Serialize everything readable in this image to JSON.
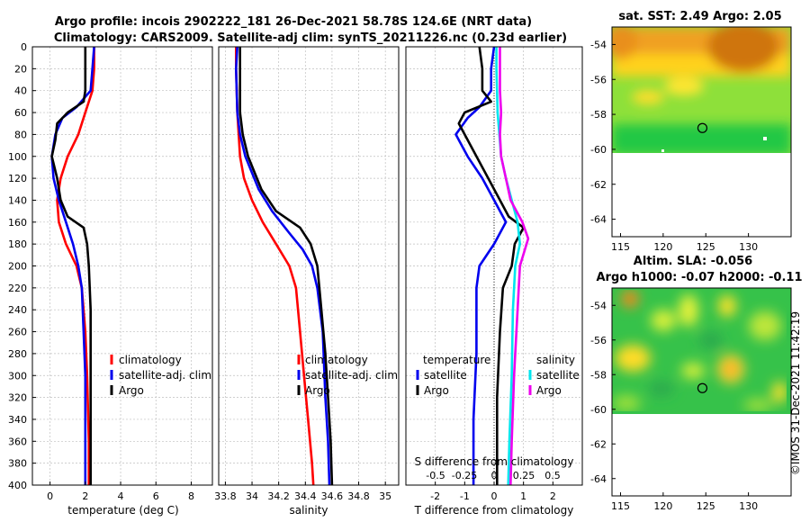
{
  "title_line1": "Argo profile: incois 2902222_181 26-Dec-2021 58.78S 124.6E (NRT data)",
  "title_line2": "Climatology: CARS2009. Satellite-adj clim: synTS_20211226.nc (0.23d earlier)",
  "copyright": "©IMOS 31-Dec-2021 11:42:19",
  "colors": {
    "climatology": "#ff0000",
    "satellite": "#0000ee",
    "argo": "#000000",
    "sat_salinity": "#00e5ee",
    "clim_salinity": "#ee00ee"
  },
  "depth_ticks": [
    "0",
    "20",
    "40",
    "60",
    "80",
    "100",
    "120",
    "140",
    "160",
    "180",
    "200",
    "220",
    "240",
    "260",
    "280",
    "300",
    "320",
    "340",
    "360",
    "380",
    "400"
  ],
  "chart_data": [
    {
      "type": "line",
      "name": "temperature",
      "xlabel": "temperature (deg C)",
      "xlim": [
        -1,
        9.2
      ],
      "ylim": [
        0,
        400
      ],
      "x_ticks": [
        "0",
        "2",
        "4",
        "6",
        "8"
      ],
      "x_tick_values": [
        0,
        2,
        4,
        6,
        8
      ],
      "legend": [
        "climatology",
        "satellite-adj. clim",
        "Argo"
      ],
      "series": [
        {
          "name": "climatology",
          "color": "red",
          "points": [
            [
              2.5,
              0
            ],
            [
              2.5,
              20
            ],
            [
              2.4,
              40
            ],
            [
              2.0,
              60
            ],
            [
              1.6,
              80
            ],
            [
              1.0,
              100
            ],
            [
              0.6,
              120
            ],
            [
              0.4,
              140
            ],
            [
              0.5,
              160
            ],
            [
              0.9,
              180
            ],
            [
              1.5,
              200
            ],
            [
              1.8,
              220
            ],
            [
              2.0,
              260
            ],
            [
              2.1,
              300
            ],
            [
              2.2,
              360
            ],
            [
              2.2,
              400
            ]
          ]
        },
        {
          "name": "satellite-adj. clim",
          "color": "blue",
          "points": [
            [
              2.5,
              0
            ],
            [
              2.4,
              20
            ],
            [
              2.3,
              40
            ],
            [
              1.5,
              55
            ],
            [
              0.7,
              65
            ],
            [
              0.3,
              80
            ],
            [
              0.1,
              100
            ],
            [
              0.2,
              120
            ],
            [
              0.5,
              140
            ],
            [
              0.9,
              160
            ],
            [
              1.3,
              180
            ],
            [
              1.6,
              200
            ],
            [
              1.8,
              220
            ],
            [
              1.9,
              260
            ],
            [
              2.0,
              300
            ],
            [
              2.0,
              360
            ],
            [
              2.0,
              400
            ]
          ]
        },
        {
          "name": "Argo",
          "color": "black",
          "points": [
            [
              2.0,
              0
            ],
            [
              2.0,
              20
            ],
            [
              2.0,
              40
            ],
            [
              1.9,
              50
            ],
            [
              1.0,
              60
            ],
            [
              0.4,
              70
            ],
            [
              0.3,
              85
            ],
            [
              0.1,
              100
            ],
            [
              0.4,
              120
            ],
            [
              0.6,
              140
            ],
            [
              1.0,
              155
            ],
            [
              1.9,
              165
            ],
            [
              2.1,
              180
            ],
            [
              2.2,
              200
            ],
            [
              2.3,
              240
            ],
            [
              2.3,
              300
            ],
            [
              2.3,
              360
            ],
            [
              2.3,
              400
            ]
          ]
        }
      ]
    },
    {
      "type": "line",
      "name": "salinity",
      "xlabel": "salinity",
      "xlim": [
        33.75,
        35.1
      ],
      "ylim": [
        0,
        400
      ],
      "x_ticks": [
        "33.8",
        "34",
        "34.2",
        "34.4",
        "34.6",
        "34.8",
        "35"
      ],
      "x_tick_values": [
        33.8,
        34,
        34.2,
        34.4,
        34.6,
        34.8,
        35
      ],
      "legend": [
        "climatology",
        "satellite-adj. clim",
        "Argo"
      ],
      "series": [
        {
          "name": "climatology",
          "color": "red",
          "points": [
            [
              33.88,
              0
            ],
            [
              33.88,
              20
            ],
            [
              33.89,
              60
            ],
            [
              33.91,
              100
            ],
            [
              33.94,
              120
            ],
            [
              34.0,
              140
            ],
            [
              34.08,
              160
            ],
            [
              34.18,
              180
            ],
            [
              34.28,
              200
            ],
            [
              34.33,
              220
            ],
            [
              34.36,
              260
            ],
            [
              34.39,
              300
            ],
            [
              34.42,
              340
            ],
            [
              34.45,
              380
            ],
            [
              34.46,
              400
            ]
          ]
        },
        {
          "name": "satellite-adj. clim",
          "color": "blue",
          "points": [
            [
              33.89,
              0
            ],
            [
              33.88,
              20
            ],
            [
              33.89,
              60
            ],
            [
              33.91,
              80
            ],
            [
              33.95,
              100
            ],
            [
              34.05,
              130
            ],
            [
              34.15,
              150
            ],
            [
              34.28,
              170
            ],
            [
              34.38,
              185
            ],
            [
              34.45,
              200
            ],
            [
              34.49,
              220
            ],
            [
              34.53,
              260
            ],
            [
              34.55,
              320
            ],
            [
              34.57,
              360
            ],
            [
              34.58,
              400
            ]
          ]
        },
        {
          "name": "Argo",
          "color": "black",
          "points": [
            [
              33.91,
              0
            ],
            [
              33.91,
              20
            ],
            [
              33.91,
              60
            ],
            [
              33.93,
              80
            ],
            [
              33.97,
              100
            ],
            [
              34.07,
              130
            ],
            [
              34.18,
              150
            ],
            [
              34.36,
              165
            ],
            [
              34.44,
              180
            ],
            [
              34.49,
              200
            ],
            [
              34.52,
              240
            ],
            [
              34.55,
              280
            ],
            [
              34.57,
              320
            ],
            [
              34.59,
              360
            ],
            [
              34.6,
              400
            ]
          ]
        }
      ]
    },
    {
      "type": "line",
      "name": "differences",
      "xlabel": "T difference from climatology",
      "xlabel2": "S difference from climatology",
      "xlim": [
        -3,
        3
      ],
      "ylim": [
        0,
        400
      ],
      "x_ticks": [
        "-2",
        "-1",
        "0",
        "1",
        "2"
      ],
      "x_tick_values": [
        -2,
        -1,
        0,
        1,
        2
      ],
      "x2_ticks": [
        "-0.5",
        "-0.25",
        "0",
        "0.25",
        "0.5"
      ],
      "legend_temperature_title": "temperature",
      "legend_salinity_title": "salinity",
      "legend_temperature": [
        "satellite",
        "Argo"
      ],
      "legend_salinity": [
        "satellite",
        "Argo"
      ],
      "series": [
        {
          "name": "temperature satellite",
          "color": "blue",
          "points": [
            [
              0.0,
              0
            ],
            [
              -0.1,
              20
            ],
            [
              -0.1,
              40
            ],
            [
              -0.5,
              55
            ],
            [
              -0.9,
              65
            ],
            [
              -1.3,
              80
            ],
            [
              -0.9,
              100
            ],
            [
              -0.4,
              120
            ],
            [
              0.0,
              140
            ],
            [
              0.4,
              160
            ],
            [
              0.0,
              180
            ],
            [
              -0.5,
              200
            ],
            [
              -0.6,
              220
            ],
            [
              -0.6,
              280
            ],
            [
              -0.7,
              340
            ],
            [
              -0.7,
              400
            ]
          ]
        },
        {
          "name": "temperature Argo",
          "color": "black",
          "points": [
            [
              -0.5,
              0
            ],
            [
              -0.4,
              20
            ],
            [
              -0.4,
              40
            ],
            [
              -0.1,
              50
            ],
            [
              -1.0,
              60
            ],
            [
              -1.2,
              70
            ],
            [
              -0.9,
              85
            ],
            [
              -0.6,
              100
            ],
            [
              -0.2,
              120
            ],
            [
              0.2,
              140
            ],
            [
              0.5,
              155
            ],
            [
              1.0,
              165
            ],
            [
              0.7,
              180
            ],
            [
              0.6,
              200
            ],
            [
              0.3,
              220
            ],
            [
              0.2,
              260
            ],
            [
              0.1,
              320
            ],
            [
              0.1,
              400
            ]
          ]
        },
        {
          "name": "salinity satellite",
          "color": "cyan",
          "points": [
            [
              0.02,
              0
            ],
            [
              0.02,
              20
            ],
            [
              0.03,
              60
            ],
            [
              0.06,
              100
            ],
            [
              0.1,
              120
            ],
            [
              0.15,
              140
            ],
            [
              0.2,
              160
            ],
            [
              0.22,
              180
            ],
            [
              0.18,
              200
            ],
            [
              0.16,
              240
            ],
            [
              0.15,
              300
            ],
            [
              0.13,
              360
            ],
            [
              0.12,
              400
            ]
          ]
        },
        {
          "name": "salinity Argo",
          "color": "magenta",
          "points": [
            [
              0.05,
              0
            ],
            [
              0.05,
              20
            ],
            [
              0.05,
              40
            ],
            [
              0.06,
              60
            ],
            [
              0.05,
              80
            ],
            [
              0.06,
              100
            ],
            [
              0.1,
              120
            ],
            [
              0.14,
              140
            ],
            [
              0.24,
              160
            ],
            [
              0.29,
              175
            ],
            [
              0.22,
              200
            ],
            [
              0.2,
              240
            ],
            [
              0.17,
              300
            ],
            [
              0.15,
              360
            ],
            [
              0.14,
              400
            ]
          ]
        }
      ]
    },
    {
      "type": "heatmap",
      "name": "sst map",
      "title": "sat. SST: 2.49 Argo: 2.05",
      "xlim": [
        114,
        135
      ],
      "ylim": [
        -65,
        -53
      ],
      "x_ticks": [
        "115",
        "120",
        "125",
        "130"
      ],
      "x_tick_values": [
        115,
        120,
        125,
        130
      ],
      "y_ticks": [
        "-54",
        "-56",
        "-58",
        "-60",
        "-62",
        "-64"
      ],
      "y_tick_values": [
        -54,
        -56,
        -58,
        -60,
        -62,
        -64
      ],
      "marker": [
        124.6,
        -58.78
      ]
    },
    {
      "type": "heatmap",
      "name": "sla map",
      "title_line1": "Altim. SLA: -0.056",
      "title_line2": "Argo h1000: -0.07 h2000: -0.11",
      "xlim": [
        114,
        135
      ],
      "ylim": [
        -65,
        -53
      ],
      "x_ticks": [
        "115",
        "120",
        "125",
        "130"
      ],
      "x_tick_values": [
        115,
        120,
        125,
        130
      ],
      "y_ticks": [
        "-54",
        "-56",
        "-58",
        "-60",
        "-62",
        "-64"
      ],
      "y_tick_values": [
        -54,
        -56,
        -58,
        -60,
        -62,
        -64
      ],
      "marker": [
        124.6,
        -58.78
      ]
    }
  ]
}
